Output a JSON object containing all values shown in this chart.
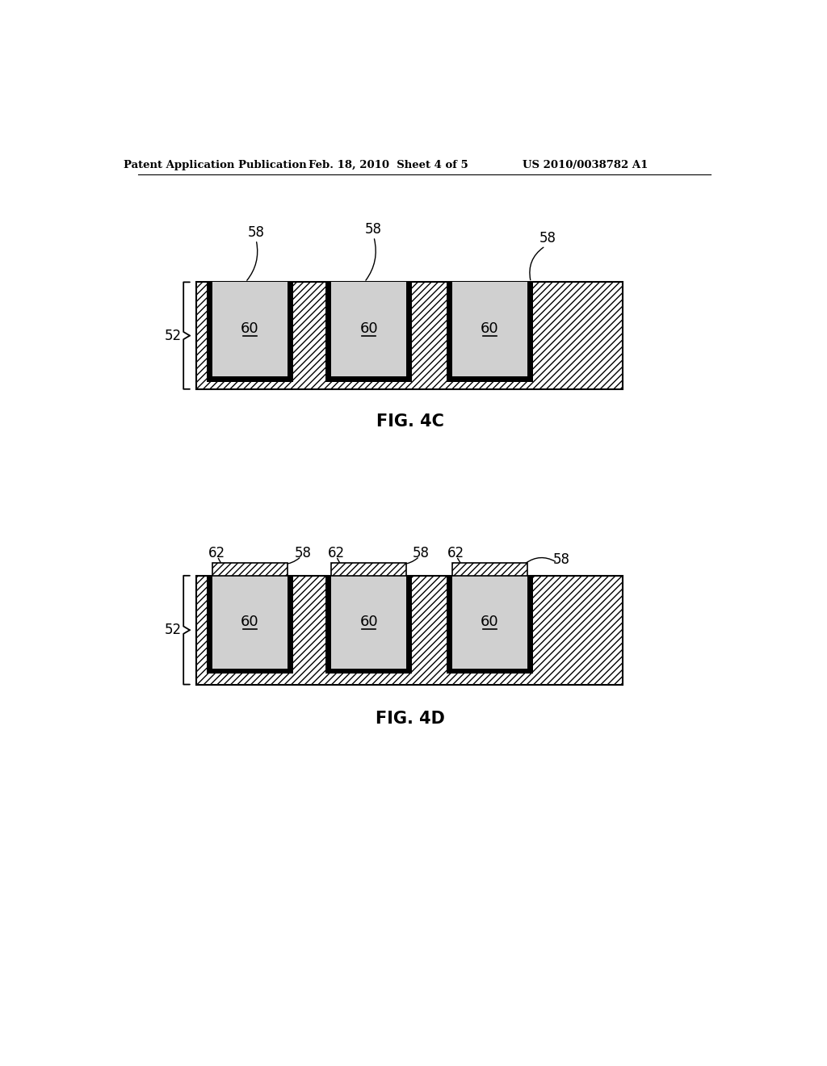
{
  "bg_color": "#ffffff",
  "header_left": "Patent Application Publication",
  "header_mid": "Feb. 18, 2010  Sheet 4 of 5",
  "header_right": "US 2010/0038782 A1",
  "fig4c_label": "FIG. 4C",
  "fig4d_label": "FIG. 4D",
  "label_52": "52",
  "label_58": "58",
  "label_60": "60",
  "label_62": "62"
}
